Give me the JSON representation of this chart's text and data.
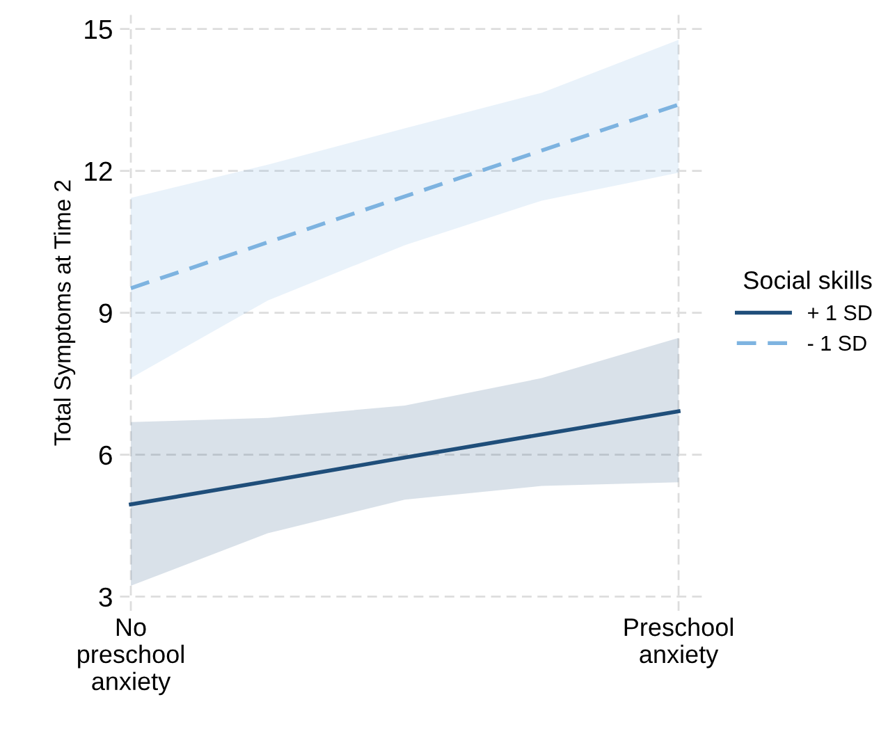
{
  "chart_data": {
    "type": "line",
    "ylabel": "Total Symptoms at Time 2",
    "legend_title": "Social skills",
    "legend": "right",
    "grid": true,
    "marker": "none",
    "categories": [
      "No\npreschool\nanxiety",
      null,
      null,
      null,
      "Preschool\nanxiety"
    ],
    "ylim": [
      2.7,
      15.3
    ],
    "yticks": [
      3,
      6,
      9,
      12,
      15
    ],
    "series": [
      {
        "name": "+ 1 SD",
        "color": "#1f4e7a",
        "line_style": "solid",
        "values": [
          4.95,
          5.44,
          5.94,
          6.43,
          6.92
        ],
        "lower": [
          3.23,
          4.34,
          5.05,
          5.34,
          5.42
        ],
        "upper": [
          6.69,
          6.78,
          7.04,
          7.62,
          8.47
        ]
      },
      {
        "name": "- 1 SD",
        "color": "#7db3e0",
        "line_style": "dashed",
        "values": [
          9.52,
          10.49,
          11.46,
          12.43,
          13.4
        ],
        "lower": [
          7.62,
          9.26,
          10.43,
          11.37,
          11.96
        ],
        "upper": [
          11.43,
          12.13,
          12.9,
          13.65,
          14.77
        ]
      }
    ]
  }
}
